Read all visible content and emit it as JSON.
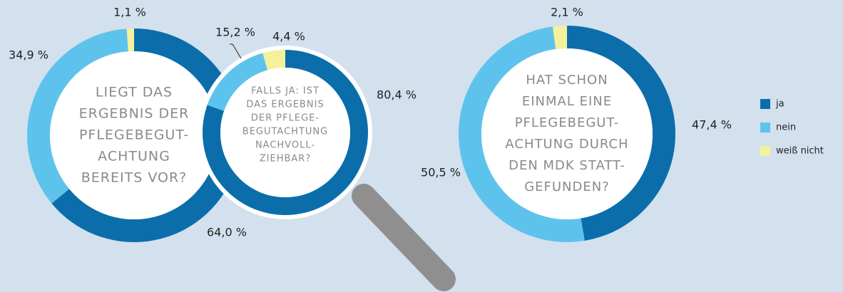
{
  "chart_data": [
    {
      "type": "donut",
      "title": [
        "LIEGT DAS",
        "ERGEBNIS DER",
        "PFLEGEBEGUT-",
        "ACHTUNG",
        "BEREITS VOR?"
      ],
      "categories": [
        "ja",
        "nein",
        "weiß nicht"
      ],
      "values": [
        64.0,
        34.9,
        1.1
      ],
      "value_labels": [
        "64,0 %",
        "34,9 %",
        "1,1 %"
      ],
      "colors": [
        "#0b6eab",
        "#5ec3ec",
        "#f3f19c"
      ]
    },
    {
      "type": "donut",
      "title": [
        "FALLS JA: IST",
        "DAS ERGEBNIS",
        "DER PFLEGE-",
        "BEGUTACHTUNG",
        "NACHVOLL-",
        "ZIEHBAR?"
      ],
      "categories": [
        "ja",
        "nein",
        "weiß nicht"
      ],
      "values": [
        80.4,
        15.2,
        4.4
      ],
      "value_labels": [
        "80,4 %",
        "15,2 %",
        "4,4 %"
      ],
      "colors": [
        "#0b6eab",
        "#5ec3ec",
        "#f3f19c"
      ]
    },
    {
      "type": "donut",
      "title": [
        "HAT SCHON",
        "EINMAL EINE",
        "PFLEGEBEGUT-",
        "ACHTUNG DURCH",
        "DEN MDK STATT-",
        "GEFUNDEN?"
      ],
      "categories": [
        "ja",
        "nein",
        "weiß nicht"
      ],
      "values": [
        47.4,
        50.5,
        2.1
      ],
      "value_labels": [
        "47,4 %",
        "50,5 %",
        "2,1 %"
      ],
      "colors": [
        "#0b6eab",
        "#5ec3ec",
        "#f3f19c"
      ],
      "legend": "right"
    }
  ]
}
